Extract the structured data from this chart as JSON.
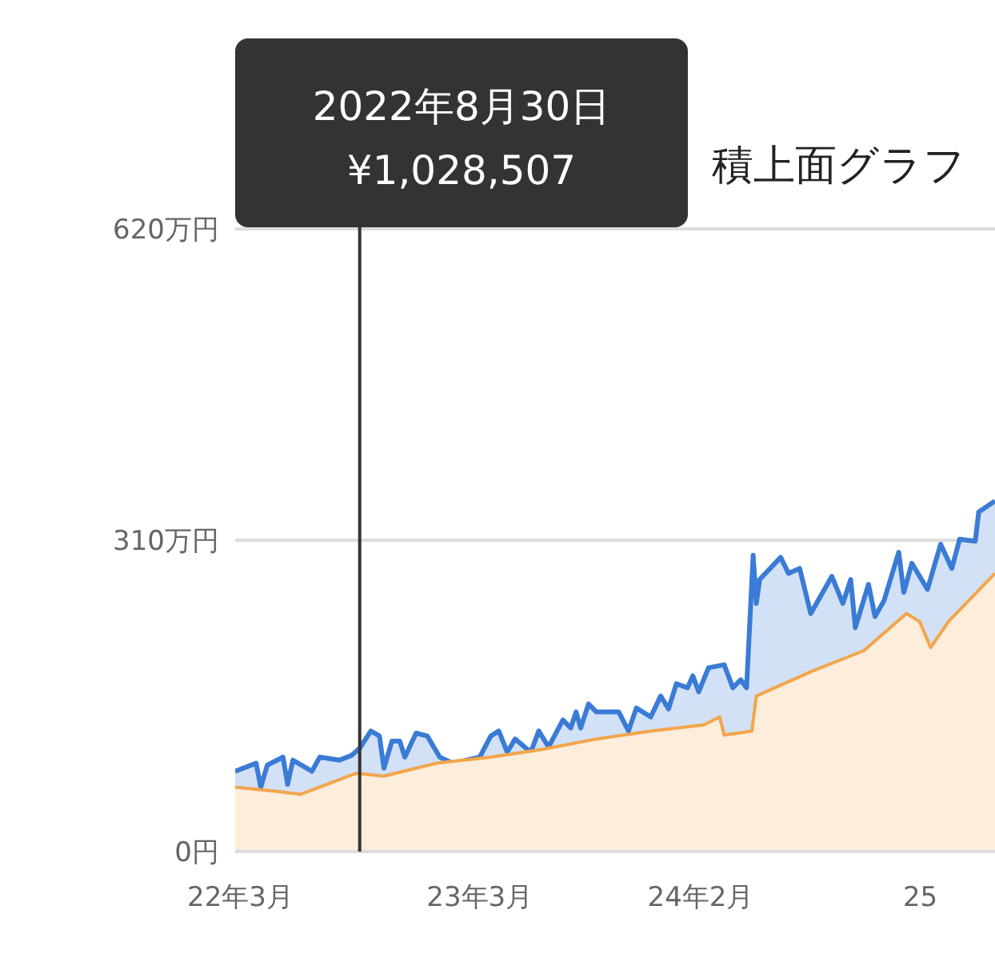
{
  "chart_data": {
    "type": "area",
    "title": "積上面グラフ",
    "xlim": [
      "2022-02-21",
      "2025-04-25"
    ],
    "xticks": [
      {
        "value": "2022-03-01",
        "label": "22年3月"
      },
      {
        "value": "2023-03-01",
        "label": "23年3月"
      },
      {
        "value": "2024-02-01",
        "label": "24年2月"
      },
      {
        "value": "2025-01-01",
        "label": "25"
      }
    ],
    "ylim": [
      0,
      620
    ],
    "yticks": [
      {
        "value": 0,
        "label": "0円"
      },
      {
        "value": 310,
        "label": "310万円"
      },
      {
        "value": 620,
        "label": "620万円"
      }
    ],
    "grid": "y",
    "series": [
      {
        "color": "#3a7bd5",
        "x": [
          "2022-02-21",
          "2022-03-25",
          "2022-04-01",
          "2022-04-11",
          "2022-05-05",
          "2022-05-12",
          "2022-05-20",
          "2022-06-18",
          "2022-06-30",
          "2022-07-30",
          "2022-08-18",
          "2022-08-30",
          "2022-09-16",
          "2022-09-29",
          "2022-10-06",
          "2022-10-18",
          "2022-10-30",
          "2022-11-07",
          "2022-11-24",
          "2022-12-11",
          "2022-12-30",
          "2023-01-19",
          "2023-03-01",
          "2023-03-18",
          "2023-03-30",
          "2023-04-12",
          "2023-04-24",
          "2023-05-18",
          "2023-05-30",
          "2023-06-14",
          "2023-07-06",
          "2023-07-18",
          "2023-07-26",
          "2023-08-02",
          "2023-08-14",
          "2023-08-26",
          "2023-09-29",
          "2023-10-14",
          "2023-10-26",
          "2023-11-17",
          "2023-12-02",
          "2023-12-14",
          "2023-12-26",
          "2024-01-12",
          "2024-01-20",
          "2024-01-29",
          "2024-02-13",
          "2024-03-08",
          "2024-03-21",
          "2024-04-02",
          "2024-04-11",
          "2024-04-21",
          "2024-04-26",
          "2024-05-01",
          "2024-06-02",
          "2024-06-14",
          "2024-07-01",
          "2024-07-18",
          "2024-08-19",
          "2024-09-05",
          "2024-09-17",
          "2024-09-24",
          "2024-10-14",
          "2024-10-24",
          "2024-11-07",
          "2024-11-29",
          "2024-12-07",
          "2024-12-19",
          "2025-01-12",
          "2025-02-01",
          "2025-02-18",
          "2025-03-02",
          "2025-03-26",
          "2025-03-31",
          "2025-04-25"
        ],
        "values": [
          80,
          88,
          64,
          86,
          94,
          67,
          91,
          80,
          94,
          91,
          96,
          103,
          120,
          115,
          83,
          110,
          110,
          94,
          118,
          115,
          94,
          88,
          94,
          115,
          120,
          99,
          112,
          99,
          120,
          104,
          131,
          123,
          139,
          123,
          147,
          139,
          139,
          120,
          143,
          134,
          155,
          142,
          167,
          163,
          175,
          159,
          183,
          186,
          163,
          171,
          163,
          295,
          247,
          271,
          293,
          277,
          282,
          237,
          274,
          247,
          271,
          223,
          266,
          234,
          250,
          298,
          258,
          287,
          261,
          306,
          282,
          311,
          309,
          338,
          349
        ]
      },
      {
        "color": "#f3a54a",
        "x": [
          "2022-02-21",
          "2022-04-25",
          "2022-06-01",
          "2022-08-25",
          "2022-10-06",
          "2022-12-25",
          "2023-03-18",
          "2023-06-07",
          "2023-08-26",
          "2023-11-17",
          "2024-02-06",
          "2024-03-01",
          "2024-03-08",
          "2024-04-19",
          "2024-04-26",
          "2024-07-18",
          "2024-10-07",
          "2024-12-11",
          "2024-12-31",
          "2025-01-17",
          "2025-02-13",
          "2025-04-25"
        ],
        "values": [
          64,
          60,
          57,
          78,
          75,
          88,
          94,
          102,
          112,
          120,
          126,
          134,
          116,
          120,
          155,
          179,
          200,
          237,
          229,
          203,
          229,
          277
        ]
      }
    ],
    "ref_lines": [
      {
        "axis": "x",
        "value": "2022-08-30",
        "color": "#333333"
      }
    ],
    "annotations": [
      "2022年8月30日",
      "¥1,028,507"
    ]
  }
}
